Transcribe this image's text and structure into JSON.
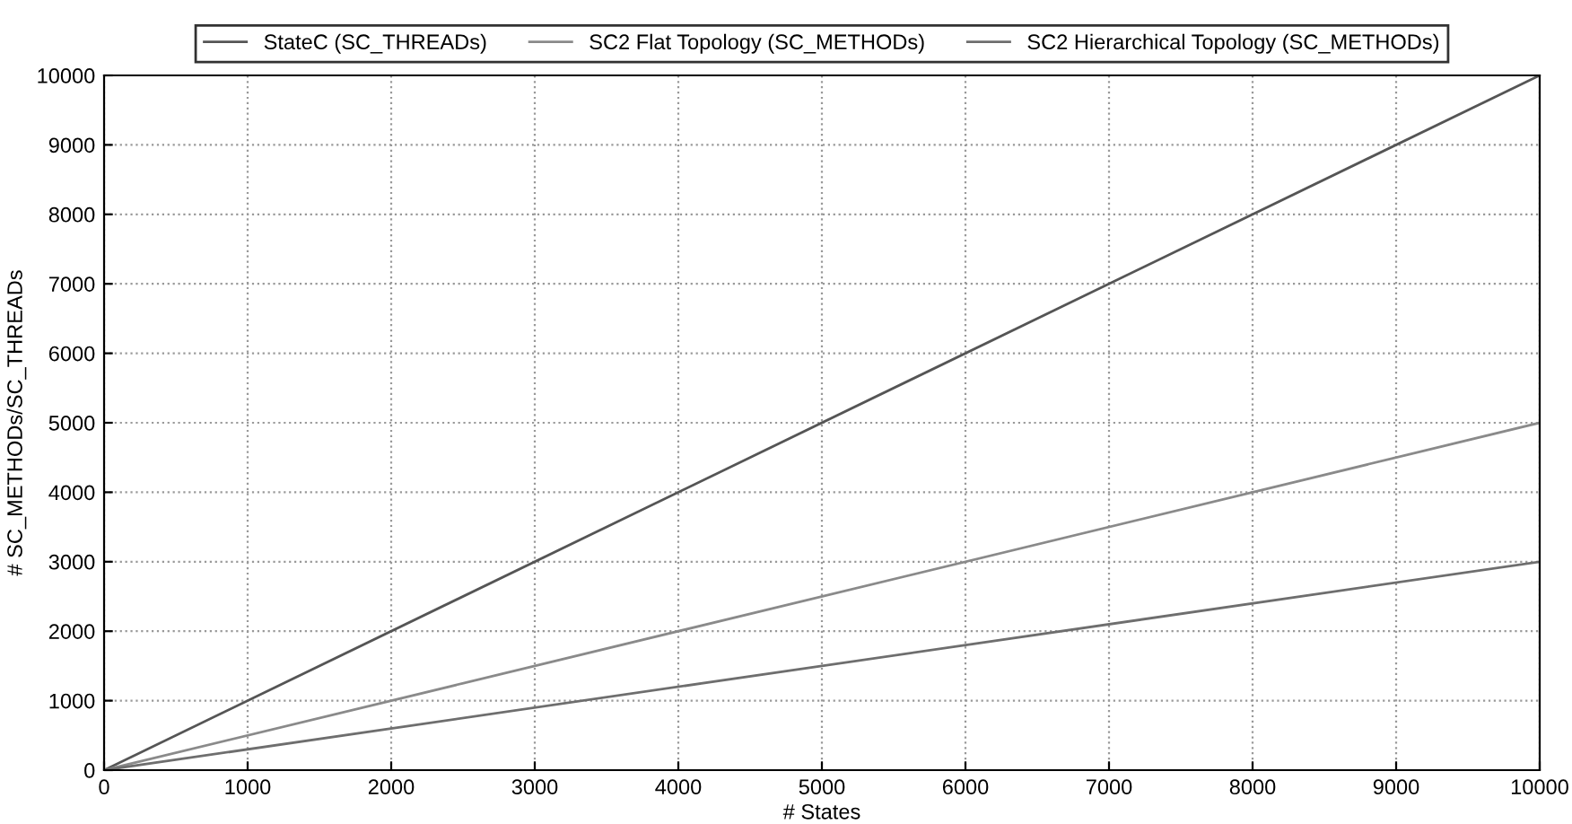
{
  "chart_data": {
    "type": "line",
    "xlabel": "# States",
    "ylabel": "# SC_METHODs/SC_THREADs",
    "x": [
      0,
      10000
    ],
    "series": [
      {
        "name": "StateC (SC_THREADs)",
        "color": "#555555",
        "values": [
          0,
          10000
        ]
      },
      {
        "name": "SC2 Flat Topology (SC_METHODs)",
        "color": "#8a8a8a",
        "values": [
          0,
          5000
        ]
      },
      {
        "name": "SC2 Hierarchical Topology (SC_METHODs)",
        "color": "#6e6e6e",
        "values": [
          0,
          3000
        ]
      }
    ],
    "xlim": [
      0,
      10000
    ],
    "ylim": [
      0,
      10000
    ],
    "xticks": [
      0,
      1000,
      2000,
      3000,
      4000,
      5000,
      6000,
      7000,
      8000,
      9000,
      10000
    ],
    "yticks": [
      0,
      1000,
      2000,
      3000,
      4000,
      5000,
      6000,
      7000,
      8000,
      9000,
      10000
    ],
    "grid": true,
    "legend": "top",
    "marker": "none",
    "line_style": "solid"
  }
}
